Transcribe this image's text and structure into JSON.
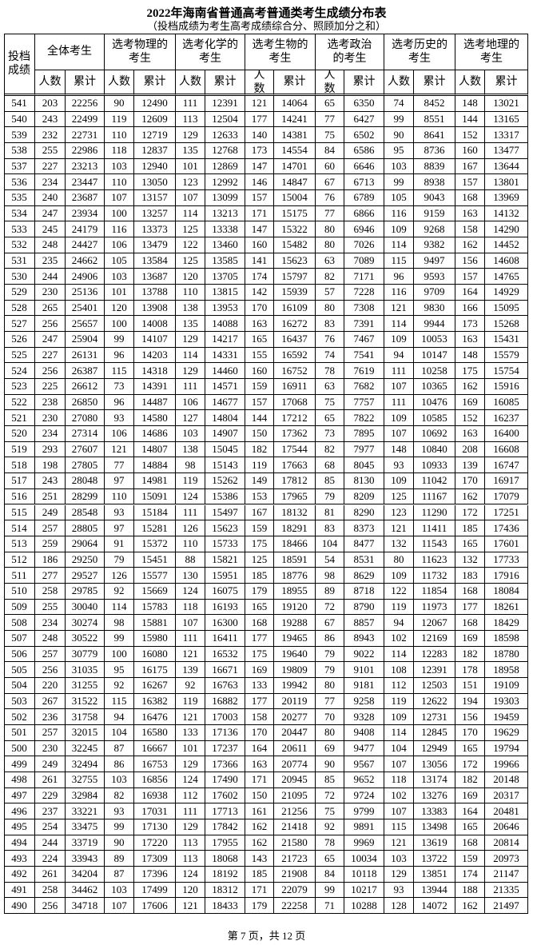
{
  "header": {
    "title": "2022年海南省普通高考普通类考生成绩分布表",
    "subtitle": "（投档成绩为考生高考成绩综合分、照顾加分之和）"
  },
  "table": {
    "columns": [
      "投档成绩",
      "全体考生",
      "选考物理的考生",
      "选考化学的考生",
      "选考生物的考生",
      "选考政治的考生",
      "选考历史的考生",
      "选考地理的考生"
    ],
    "subcolumns": [
      "人数",
      "累计",
      "人数",
      "累计",
      "人数",
      "累计",
      "人数",
      "累计",
      "人数",
      "累计",
      "人数",
      "累计",
      "人数",
      "累计"
    ],
    "rows": [
      [
        541,
        203,
        22256,
        90,
        12490,
        111,
        12391,
        121,
        14064,
        65,
        6350,
        74,
        8452,
        148,
        13021
      ],
      [
        540,
        243,
        22499,
        119,
        12609,
        113,
        12504,
        177,
        14241,
        77,
        6427,
        99,
        8551,
        144,
        13165
      ],
      [
        539,
        232,
        22731,
        110,
        12719,
        129,
        12633,
        140,
        14381,
        75,
        6502,
        90,
        8641,
        152,
        13317
      ],
      [
        538,
        255,
        22986,
        118,
        12837,
        135,
        12768,
        173,
        14554,
        84,
        6586,
        95,
        8736,
        160,
        13477
      ],
      [
        537,
        227,
        23213,
        103,
        12940,
        101,
        12869,
        147,
        14701,
        60,
        6646,
        103,
        8839,
        167,
        13644
      ],
      [
        536,
        234,
        23447,
        110,
        13050,
        123,
        12992,
        146,
        14847,
        67,
        6713,
        99,
        8938,
        157,
        13801
      ],
      [
        535,
        240,
        23687,
        107,
        13157,
        107,
        13099,
        157,
        15004,
        76,
        6789,
        105,
        9043,
        168,
        13969
      ],
      [
        534,
        247,
        23934,
        100,
        13257,
        114,
        13213,
        171,
        15175,
        77,
        6866,
        116,
        9159,
        163,
        14132
      ],
      [
        533,
        245,
        24179,
        116,
        13373,
        125,
        13338,
        147,
        15322,
        80,
        6946,
        109,
        9268,
        158,
        14290
      ],
      [
        532,
        248,
        24427,
        106,
        13479,
        122,
        13460,
        160,
        15482,
        80,
        7026,
        114,
        9382,
        162,
        14452
      ],
      [
        531,
        235,
        24662,
        105,
        13584,
        125,
        13585,
        141,
        15623,
        63,
        7089,
        115,
        9497,
        156,
        14608
      ],
      [
        530,
        244,
        24906,
        103,
        13687,
        120,
        13705,
        174,
        15797,
        82,
        7171,
        96,
        9593,
        157,
        14765
      ],
      [
        529,
        230,
        25136,
        101,
        13788,
        110,
        13815,
        142,
        15939,
        57,
        7228,
        116,
        9709,
        164,
        14929
      ],
      [
        528,
        265,
        25401,
        120,
        13908,
        138,
        13953,
        170,
        16109,
        80,
        7308,
        121,
        9830,
        166,
        15095
      ],
      [
        527,
        256,
        25657,
        100,
        14008,
        135,
        14088,
        163,
        16272,
        83,
        7391,
        114,
        9944,
        173,
        15268
      ],
      [
        526,
        247,
        25904,
        99,
        14107,
        129,
        14217,
        165,
        16437,
        76,
        7467,
        109,
        10053,
        163,
        15431
      ],
      [
        525,
        227,
        26131,
        96,
        14203,
        114,
        14331,
        155,
        16592,
        74,
        7541,
        94,
        10147,
        148,
        15579
      ],
      [
        524,
        256,
        26387,
        115,
        14318,
        129,
        14460,
        160,
        16752,
        78,
        7619,
        111,
        10258,
        175,
        15754
      ],
      [
        523,
        225,
        26612,
        73,
        14391,
        111,
        14571,
        159,
        16911,
        63,
        7682,
        107,
        10365,
        162,
        15916
      ],
      [
        522,
        238,
        26850,
        96,
        14487,
        106,
        14677,
        157,
        17068,
        75,
        7757,
        111,
        10476,
        169,
        16085
      ],
      [
        521,
        230,
        27080,
        93,
        14580,
        127,
        14804,
        144,
        17212,
        65,
        7822,
        109,
        10585,
        152,
        16237
      ],
      [
        520,
        234,
        27314,
        106,
        14686,
        103,
        14907,
        150,
        17362,
        73,
        7895,
        107,
        10692,
        163,
        16400
      ],
      [
        519,
        293,
        27607,
        121,
        14807,
        138,
        15045,
        182,
        17544,
        82,
        7977,
        148,
        10840,
        208,
        16608
      ],
      [
        518,
        198,
        27805,
        77,
        14884,
        98,
        15143,
        119,
        17663,
        68,
        8045,
        93,
        10933,
        139,
        16747
      ],
      [
        517,
        243,
        28048,
        97,
        14981,
        119,
        15262,
        149,
        17812,
        85,
        8130,
        109,
        11042,
        170,
        16917
      ],
      [
        516,
        251,
        28299,
        110,
        15091,
        124,
        15386,
        153,
        17965,
        79,
        8209,
        125,
        11167,
        162,
        17079
      ],
      [
        515,
        249,
        28548,
        93,
        15184,
        111,
        15497,
        167,
        18132,
        81,
        8290,
        123,
        11290,
        172,
        17251
      ],
      [
        514,
        257,
        28805,
        97,
        15281,
        126,
        15623,
        159,
        18291,
        83,
        8373,
        121,
        11411,
        185,
        17436
      ],
      [
        513,
        259,
        29064,
        91,
        15372,
        110,
        15733,
        175,
        18466,
        104,
        8477,
        132,
        11543,
        165,
        17601
      ],
      [
        512,
        186,
        29250,
        79,
        15451,
        88,
        15821,
        125,
        18591,
        54,
        8531,
        80,
        11623,
        132,
        17733
      ],
      [
        511,
        277,
        29527,
        126,
        15577,
        130,
        15951,
        185,
        18776,
        98,
        8629,
        109,
        11732,
        183,
        17916
      ],
      [
        510,
        258,
        29785,
        92,
        15669,
        124,
        16075,
        179,
        18955,
        89,
        8718,
        122,
        11854,
        168,
        18084
      ],
      [
        509,
        255,
        30040,
        114,
        15783,
        118,
        16193,
        165,
        19120,
        72,
        8790,
        119,
        11973,
        177,
        18261
      ],
      [
        508,
        234,
        30274,
        98,
        15881,
        107,
        16300,
        168,
        19288,
        67,
        8857,
        94,
        12067,
        168,
        18429
      ],
      [
        507,
        248,
        30522,
        99,
        15980,
        111,
        16411,
        177,
        19465,
        86,
        8943,
        102,
        12169,
        169,
        18598
      ],
      [
        506,
        257,
        30779,
        100,
        16080,
        121,
        16532,
        175,
        19640,
        79,
        9022,
        114,
        12283,
        182,
        18780
      ],
      [
        505,
        256,
        31035,
        95,
        16175,
        139,
        16671,
        169,
        19809,
        79,
        9101,
        108,
        12391,
        178,
        18958
      ],
      [
        504,
        220,
        31255,
        92,
        16267,
        92,
        16763,
        133,
        19942,
        80,
        9181,
        112,
        12503,
        151,
        19109
      ],
      [
        503,
        267,
        31522,
        115,
        16382,
        119,
        16882,
        177,
        20119,
        77,
        9258,
        119,
        12622,
        194,
        19303
      ],
      [
        502,
        236,
        31758,
        94,
        16476,
        121,
        17003,
        158,
        20277,
        70,
        9328,
        109,
        12731,
        156,
        19459
      ],
      [
        501,
        257,
        32015,
        104,
        16580,
        133,
        17136,
        170,
        20447,
        80,
        9408,
        114,
        12845,
        170,
        19629
      ],
      [
        500,
        230,
        32245,
        87,
        16667,
        101,
        17237,
        164,
        20611,
        69,
        9477,
        104,
        12949,
        165,
        19794
      ],
      [
        499,
        249,
        32494,
        86,
        16753,
        129,
        17366,
        163,
        20774,
        90,
        9567,
        107,
        13056,
        172,
        19966
      ],
      [
        498,
        261,
        32755,
        103,
        16856,
        124,
        17490,
        171,
        20945,
        85,
        9652,
        118,
        13174,
        182,
        20148
      ],
      [
        497,
        229,
        32984,
        82,
        16938,
        112,
        17602,
        150,
        21095,
        72,
        9724,
        102,
        13276,
        169,
        20317
      ],
      [
        496,
        237,
        33221,
        93,
        17031,
        111,
        17713,
        161,
        21256,
        75,
        9799,
        107,
        13383,
        164,
        20481
      ],
      [
        495,
        254,
        33475,
        99,
        17130,
        129,
        17842,
        162,
        21418,
        92,
        9891,
        115,
        13498,
        165,
        20646
      ],
      [
        494,
        244,
        33719,
        90,
        17220,
        113,
        17955,
        162,
        21580,
        78,
        9969,
        121,
        13619,
        168,
        20814
      ],
      [
        493,
        224,
        33943,
        89,
        17309,
        113,
        18068,
        143,
        21723,
        65,
        10034,
        103,
        13722,
        159,
        20973
      ],
      [
        492,
        261,
        34204,
        87,
        17396,
        124,
        18192,
        185,
        21908,
        84,
        10118,
        129,
        13851,
        174,
        21147
      ],
      [
        491,
        258,
        34462,
        103,
        17499,
        120,
        18312,
        171,
        22079,
        99,
        10217,
        93,
        13944,
        188,
        21335
      ],
      [
        490,
        256,
        34718,
        107,
        17606,
        121,
        18433,
        179,
        22258,
        71,
        10288,
        128,
        14072,
        162,
        21497
      ]
    ]
  },
  "footer": "第 7 页，共 12 页"
}
